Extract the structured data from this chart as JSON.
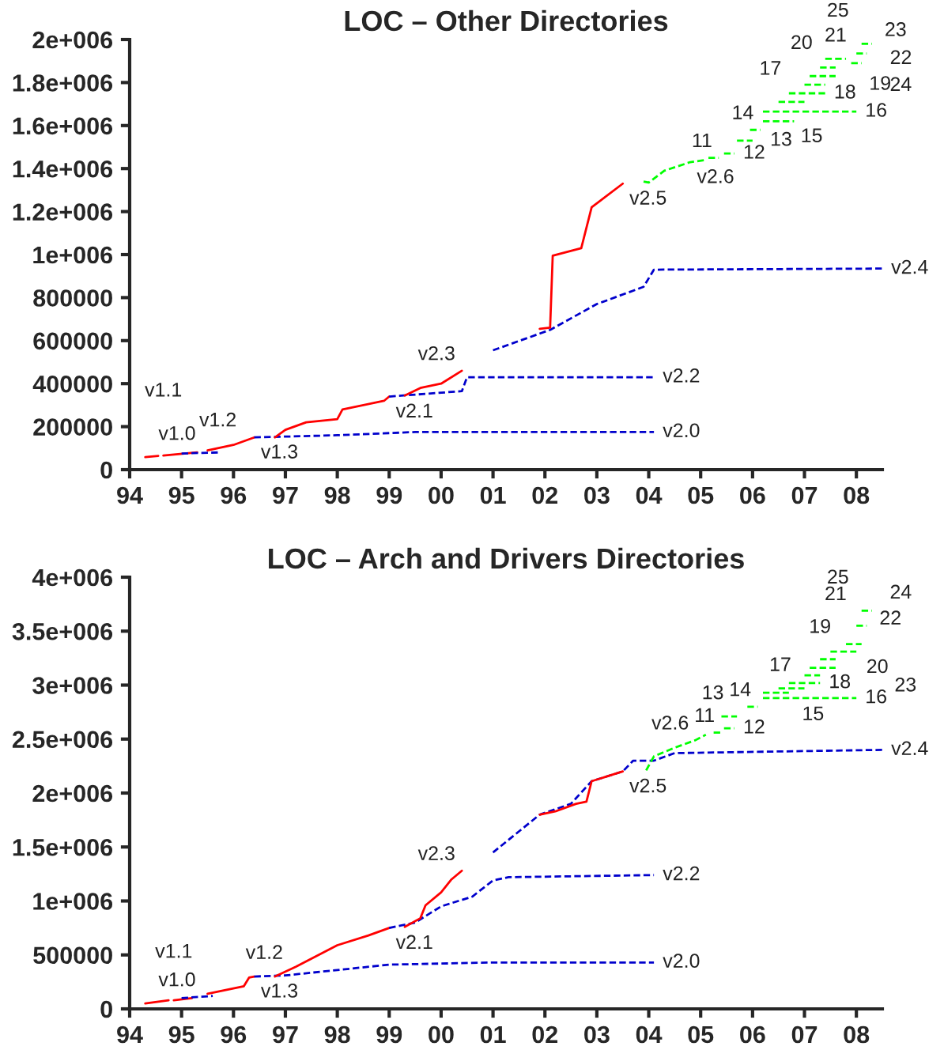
{
  "chart_data": [
    {
      "type": "line",
      "title": "LOC – Other Directories",
      "xlim": [
        1994,
        2008.5
      ],
      "xticks": [
        {
          "value": 1994,
          "label": "94"
        },
        {
          "value": 1995,
          "label": "95"
        },
        {
          "value": 1996,
          "label": "96"
        },
        {
          "value": 1997,
          "label": "97"
        },
        {
          "value": 1998,
          "label": "98"
        },
        {
          "value": 1999,
          "label": "99"
        },
        {
          "value": 2000,
          "label": "00"
        },
        {
          "value": 2001,
          "label": "01"
        },
        {
          "value": 2002,
          "label": "02"
        },
        {
          "value": 2003,
          "label": "03"
        },
        {
          "value": 2004,
          "label": "04"
        },
        {
          "value": 2005,
          "label": "05"
        },
        {
          "value": 2006,
          "label": "06"
        },
        {
          "value": 2007,
          "label": "07"
        },
        {
          "value": 2008,
          "label": "08"
        }
      ],
      "ylim": [
        0,
        2000000
      ],
      "yticks": [
        0,
        200000,
        400000,
        600000,
        800000,
        {
          "value": 1000000,
          "label": "1e+006"
        },
        {
          "value": 1200000,
          "label": "1.2e+006"
        },
        {
          "value": 1400000,
          "label": "1.4e+006"
        },
        {
          "value": 1600000,
          "label": "1.6e+006"
        },
        {
          "value": 1800000,
          "label": "1.8e+006"
        },
        {
          "value": 2000000,
          "label": "2e+006"
        }
      ],
      "grid": false,
      "legend": false,
      "series": [
        {
          "color": "#ff0000",
          "line_style": "solid",
          "x": [
            1994.3,
            1994.55
          ],
          "values": [
            58000,
            64000
          ]
        },
        {
          "color": "#ff0000",
          "line_style": "solid",
          "x": [
            1994.65,
            1995.3
          ],
          "values": [
            66000,
            80000
          ]
        },
        {
          "color": "#0000cc",
          "line_style": "dashed",
          "x": [
            1995.0,
            1995.7
          ],
          "values": [
            75000,
            80000
          ]
        },
        {
          "color": "#ff0000",
          "line_style": "solid",
          "x": [
            1995.5,
            1996.0,
            1996.4
          ],
          "values": [
            90000,
            115000,
            150000
          ]
        },
        {
          "color": "#0000cc",
          "line_style": "dashed",
          "x": [
            1996.4,
            1998.0,
            1999.5,
            2004.1
          ],
          "values": [
            150000,
            160000,
            175000,
            175000
          ]
        },
        {
          "color": "#ff0000",
          "line_style": "solid",
          "x": [
            1996.8,
            1997.0,
            1997.4,
            1998.0,
            1998.1,
            1998.9,
            1999.0
          ],
          "values": [
            150000,
            185000,
            220000,
            235000,
            280000,
            320000,
            340000
          ]
        },
        {
          "color": "#0000cc",
          "line_style": "dashed",
          "x": [
            1999.0,
            2000.4,
            2000.5,
            2004.1
          ],
          "values": [
            340000,
            365000,
            430000,
            430000
          ]
        },
        {
          "color": "#ff0000",
          "line_style": "solid",
          "x": [
            1999.3,
            1999.6,
            2000.0,
            2000.4
          ],
          "values": [
            345000,
            380000,
            400000,
            460000
          ]
        },
        {
          "color": "#0000cc",
          "line_style": "dashed",
          "x": [
            2001.0,
            2002.1,
            2003.0,
            2003.9,
            2004.1,
            2008.5
          ],
          "values": [
            555000,
            650000,
            770000,
            850000,
            930000,
            935000
          ]
        },
        {
          "color": "#ff0000",
          "line_style": "solid",
          "x": [
            2001.9,
            2002.1,
            2002.15,
            2002.7,
            2002.9,
            2003.5
          ],
          "values": [
            655000,
            660000,
            995000,
            1030000,
            1220000,
            1330000
          ]
        },
        {
          "color": "#00ff00",
          "line_style": "dashed",
          "x": [
            2003.9,
            2004.0,
            2004.3,
            2004.8,
            2005.1
          ],
          "values": [
            1340000,
            1335000,
            1390000,
            1430000,
            1440000
          ]
        },
        {
          "color": "#00ff00",
          "line_style": "dashed",
          "x": [
            2005.15,
            2005.35
          ],
          "values": [
            1450000,
            1450000
          ]
        },
        {
          "color": "#00ff00",
          "line_style": "dashed",
          "x": [
            2005.45,
            2005.65
          ],
          "values": [
            1470000,
            1470000
          ]
        },
        {
          "color": "#00ff00",
          "line_style": "dashed",
          "x": [
            2005.7,
            2006.0
          ],
          "values": [
            1530000,
            1530000
          ]
        },
        {
          "color": "#00ff00",
          "line_style": "dashed",
          "x": [
            2005.95,
            2006.15
          ],
          "values": [
            1580000,
            1580000
          ]
        },
        {
          "color": "#00ff00",
          "line_style": "dashed",
          "x": [
            2006.2,
            2006.8
          ],
          "values": [
            1620000,
            1620000
          ]
        },
        {
          "color": "#00ff00",
          "line_style": "dashed",
          "x": [
            2006.2,
            2008.0
          ],
          "values": [
            1665000,
            1665000
          ]
        },
        {
          "color": "#00ff00",
          "line_style": "dashed",
          "x": [
            2006.5,
            2007.0
          ],
          "values": [
            1710000,
            1710000
          ]
        },
        {
          "color": "#00ff00",
          "line_style": "dashed",
          "x": [
            2006.7,
            2007.4
          ],
          "values": [
            1750000,
            1750000
          ]
        },
        {
          "color": "#00ff00",
          "line_style": "dashed",
          "x": [
            2007.0,
            2007.4
          ],
          "values": [
            1790000,
            1790000
          ]
        },
        {
          "color": "#00ff00",
          "line_style": "dashed",
          "x": [
            2007.1,
            2007.6
          ],
          "values": [
            1830000,
            1830000
          ]
        },
        {
          "color": "#00ff00",
          "line_style": "dashed",
          "x": [
            2007.3,
            2007.6
          ],
          "values": [
            1870000,
            1870000
          ]
        },
        {
          "color": "#00ff00",
          "line_style": "dashed",
          "x": [
            2007.4,
            2007.8
          ],
          "values": [
            1910000,
            1910000
          ]
        },
        {
          "color": "#00ff00",
          "line_style": "dashed",
          "x": [
            2007.9,
            2008.1
          ],
          "values": [
            1890000,
            1890000
          ]
        },
        {
          "color": "#00ff00",
          "line_style": "dashed",
          "x": [
            2008.0,
            2008.2
          ],
          "values": [
            1935000,
            1935000
          ]
        },
        {
          "color": "#00ff00",
          "line_style": "dashed",
          "x": [
            2008.1,
            2008.3
          ],
          "values": [
            1980000,
            1980000
          ]
        }
      ],
      "annotations": [
        {
          "text": "v1.0",
          "x": 1994.3,
          "y": 58000
        },
        {
          "text": "v1.1",
          "x": 1994.65,
          "y": 66000
        },
        {
          "text": "v1.2",
          "x": 1995.7,
          "y": 80000
        },
        {
          "text": "v1.3",
          "x": 1996.4,
          "y": 150000
        },
        {
          "text": "v2.0",
          "x": 2004.1,
          "y": 175000
        },
        {
          "text": "v2.1",
          "x": 1999.0,
          "y": 340000
        },
        {
          "text": "v2.2",
          "x": 2004.1,
          "y": 430000
        },
        {
          "text": "v2.3",
          "x": 2000.4,
          "y": 460000
        },
        {
          "text": "v2.4",
          "x": 2008.5,
          "y": 935000
        },
        {
          "text": "v2.5",
          "x": 2003.5,
          "y": 1330000
        },
        {
          "text": "v2.6",
          "x": 2004.8,
          "y": 1430000
        },
        {
          "text": "11",
          "x": 2005.35,
          "y": 1450000
        },
        {
          "text": "12",
          "x": 2005.65,
          "y": 1470000
        },
        {
          "text": "13",
          "x": 2006.0,
          "y": 1530000
        },
        {
          "text": "14",
          "x": 2006.15,
          "y": 1580000
        },
        {
          "text": "15",
          "x": 2006.8,
          "y": 1620000
        },
        {
          "text": "16",
          "x": 2008.0,
          "y": 1665000
        },
        {
          "text": "17",
          "x": 2007.0,
          "y": 1710000
        },
        {
          "text": "18",
          "x": 2007.4,
          "y": 1750000
        },
        {
          "text": "19",
          "x": 2007.4,
          "y": 1790000
        },
        {
          "text": "20",
          "x": 2007.6,
          "y": 1830000
        },
        {
          "text": "21",
          "x": 2007.6,
          "y": 1870000
        },
        {
          "text": "22",
          "x": 2007.8,
          "y": 1910000
        },
        {
          "text": "23",
          "x": 2008.1,
          "y": 1890000
        },
        {
          "text": "24",
          "x": 2008.2,
          "y": 1935000
        },
        {
          "text": "25",
          "x": 2008.3,
          "y": 1980000
        }
      ]
    },
    {
      "type": "line",
      "title": "LOC – Arch and Drivers Directories",
      "xlim": [
        1994,
        2008.5
      ],
      "xticks": [
        {
          "value": 1994,
          "label": "94"
        },
        {
          "value": 1995,
          "label": "95"
        },
        {
          "value": 1996,
          "label": "96"
        },
        {
          "value": 1997,
          "label": "97"
        },
        {
          "value": 1998,
          "label": "98"
        },
        {
          "value": 1999,
          "label": "99"
        },
        {
          "value": 2000,
          "label": "00"
        },
        {
          "value": 2001,
          "label": "01"
        },
        {
          "value": 2002,
          "label": "02"
        },
        {
          "value": 2003,
          "label": "03"
        },
        {
          "value": 2004,
          "label": "04"
        },
        {
          "value": 2005,
          "label": "05"
        },
        {
          "value": 2006,
          "label": "06"
        },
        {
          "value": 2007,
          "label": "07"
        },
        {
          "value": 2008,
          "label": "08"
        }
      ],
      "ylim": [
        0,
        4000000
      ],
      "yticks": [
        0,
        500000,
        {
          "value": 1000000,
          "label": "1e+006"
        },
        {
          "value": 1500000,
          "label": "1.5e+006"
        },
        {
          "value": 2000000,
          "label": "2e+006"
        },
        {
          "value": 2500000,
          "label": "2.5e+006"
        },
        {
          "value": 3000000,
          "label": "3e+006"
        },
        {
          "value": 3500000,
          "label": "3.5e+006"
        },
        {
          "value": 4000000,
          "label": "4e+006"
        }
      ],
      "grid": false,
      "legend": false,
      "series": [
        {
          "color": "#ff0000",
          "line_style": "solid",
          "x": [
            1994.3,
            1994.75
          ],
          "values": [
            50000,
            80000
          ]
        },
        {
          "color": "#ff0000",
          "line_style": "solid",
          "x": [
            1994.85,
            1995.2
          ],
          "values": [
            80000,
            100000
          ]
        },
        {
          "color": "#0000cc",
          "line_style": "dashed",
          "x": [
            1995.0,
            1995.6
          ],
          "values": [
            100000,
            120000
          ]
        },
        {
          "color": "#ff0000",
          "line_style": "solid",
          "x": [
            1995.5,
            1996.2,
            1996.3,
            1996.4
          ],
          "values": [
            140000,
            210000,
            290000,
            300000
          ]
        },
        {
          "color": "#0000cc",
          "line_style": "dashed",
          "x": [
            1996.4,
            1997.0,
            1999.0,
            2001.0,
            2004.1
          ],
          "values": [
            300000,
            310000,
            410000,
            430000,
            430000
          ]
        },
        {
          "color": "#ff0000",
          "line_style": "solid",
          "x": [
            1996.8,
            1997.2,
            1998.0,
            1998.6,
            1999.0
          ],
          "values": [
            300000,
            390000,
            590000,
            680000,
            750000
          ]
        },
        {
          "color": "#0000cc",
          "line_style": "dashed",
          "x": [
            1999.0,
            1999.5,
            2000.0,
            2000.6,
            2001.0,
            2001.3,
            2004.1
          ],
          "values": [
            750000,
            800000,
            950000,
            1040000,
            1190000,
            1220000,
            1240000
          ]
        },
        {
          "color": "#ff0000",
          "line_style": "solid",
          "x": [
            1999.3,
            1999.6,
            1999.7,
            2000.0,
            2000.2,
            2000.4
          ],
          "values": [
            760000,
            840000,
            960000,
            1080000,
            1200000,
            1280000
          ]
        },
        {
          "color": "#0000cc",
          "line_style": "dashed",
          "x": [
            2001.0,
            2001.9,
            2002.5,
            2002.9,
            2003.5,
            2003.7,
            2004.1,
            2004.5,
            2008.5
          ],
          "values": [
            1450000,
            1800000,
            1900000,
            2110000,
            2200000,
            2300000,
            2300000,
            2370000,
            2400000
          ]
        },
        {
          "color": "#ff0000",
          "line_style": "solid",
          "x": [
            2001.9,
            2002.2,
            2002.6,
            2002.8,
            2002.9,
            2003.5
          ],
          "values": [
            1800000,
            1830000,
            1900000,
            1920000,
            2110000,
            2200000
          ]
        },
        {
          "color": "#00ff00",
          "line_style": "dashed",
          "x": [
            2003.95,
            2004.1,
            2004.5,
            2004.9,
            2005.1
          ],
          "values": [
            2210000,
            2340000,
            2420000,
            2490000,
            2540000
          ]
        },
        {
          "color": "#00ff00",
          "line_style": "dashed",
          "x": [
            2005.25,
            2005.4
          ],
          "values": [
            2560000,
            2560000
          ]
        },
        {
          "color": "#00ff00",
          "line_style": "dashed",
          "x": [
            2005.45,
            2005.65
          ],
          "values": [
            2600000,
            2600000
          ]
        },
        {
          "color": "#00ff00",
          "line_style": "dashed",
          "x": [
            2005.4,
            2005.7
          ],
          "values": [
            2710000,
            2710000
          ]
        },
        {
          "color": "#00ff00",
          "line_style": "dashed",
          "x": [
            2005.9,
            2006.1
          ],
          "values": [
            2800000,
            2800000
          ]
        },
        {
          "color": "#00ff00",
          "line_style": "dashed",
          "x": [
            2006.2,
            2006.7
          ],
          "values": [
            2930000,
            2930000
          ]
        },
        {
          "color": "#00ff00",
          "line_style": "dashed",
          "x": [
            2006.2,
            2008.0
          ],
          "values": [
            2880000,
            2880000
          ]
        },
        {
          "color": "#00ff00",
          "line_style": "dashed",
          "x": [
            2006.5,
            2007.0
          ],
          "values": [
            2970000,
            2970000
          ]
        },
        {
          "color": "#00ff00",
          "line_style": "dashed",
          "x": [
            2006.7,
            2007.3
          ],
          "values": [
            3020000,
            3020000
          ]
        },
        {
          "color": "#00ff00",
          "line_style": "dashed",
          "x": [
            2007.0,
            2007.3
          ],
          "values": [
            3090000,
            3090000
          ]
        },
        {
          "color": "#00ff00",
          "line_style": "dashed",
          "x": [
            2007.1,
            2007.6
          ],
          "values": [
            3160000,
            3160000
          ]
        },
        {
          "color": "#00ff00",
          "line_style": "dashed",
          "x": [
            2007.3,
            2007.6
          ],
          "values": [
            3240000,
            3240000
          ]
        },
        {
          "color": "#00ff00",
          "line_style": "dashed",
          "x": [
            2007.5,
            2008.0
          ],
          "values": [
            3310000,
            3310000
          ]
        },
        {
          "color": "#00ff00",
          "line_style": "dashed",
          "x": [
            2007.8,
            2008.1
          ],
          "values": [
            3380000,
            3380000
          ]
        },
        {
          "color": "#00ff00",
          "line_style": "dashed",
          "x": [
            2008.0,
            2008.2
          ],
          "values": [
            3550000,
            3550000
          ]
        },
        {
          "color": "#00ff00",
          "line_style": "dashed",
          "x": [
            2008.1,
            2008.3
          ],
          "values": [
            3690000,
            3690000
          ]
        }
      ],
      "annotations": [
        {
          "text": "v1.0",
          "x": 1994.3,
          "y": 50000
        },
        {
          "text": "v1.1",
          "x": 1994.85,
          "y": 80000
        },
        {
          "text": "v1.2",
          "x": 1995.6,
          "y": 120000
        },
        {
          "text": "v1.3",
          "x": 1996.4,
          "y": 300000
        },
        {
          "text": "v2.0",
          "x": 2004.1,
          "y": 430000
        },
        {
          "text": "v2.1",
          "x": 1999.0,
          "y": 750000
        },
        {
          "text": "v2.2",
          "x": 2004.1,
          "y": 1240000
        },
        {
          "text": "v2.3",
          "x": 2000.4,
          "y": 1280000
        },
        {
          "text": "v2.4",
          "x": 2008.5,
          "y": 2400000
        },
        {
          "text": "v2.5",
          "x": 2003.5,
          "y": 2200000
        },
        {
          "text": "v2.6",
          "x": 2004.9,
          "y": 2490000
        },
        {
          "text": "11",
          "x": 2005.4,
          "y": 2560000
        },
        {
          "text": "12",
          "x": 2005.65,
          "y": 2600000
        },
        {
          "text": "13",
          "x": 2005.7,
          "y": 2710000
        },
        {
          "text": "14",
          "x": 2006.1,
          "y": 2800000
        },
        {
          "text": "15",
          "x": 2006.7,
          "y": 2930000
        },
        {
          "text": "16",
          "x": 2008.0,
          "y": 2880000
        },
        {
          "text": "17",
          "x": 2007.0,
          "y": 2970000
        },
        {
          "text": "18",
          "x": 2007.3,
          "y": 3020000
        },
        {
          "text": "19",
          "x": 2007.3,
          "y": 3090000
        },
        {
          "text": "20",
          "x": 2007.6,
          "y": 3160000
        },
        {
          "text": "21",
          "x": 2007.6,
          "y": 3240000
        },
        {
          "text": "22",
          "x": 2008.0,
          "y": 3310000
        },
        {
          "text": "23",
          "x": 2008.1,
          "y": 3380000
        },
        {
          "text": "24",
          "x": 2008.2,
          "y": 3550000
        },
        {
          "text": "25",
          "x": 2008.3,
          "y": 3690000
        }
      ]
    }
  ]
}
